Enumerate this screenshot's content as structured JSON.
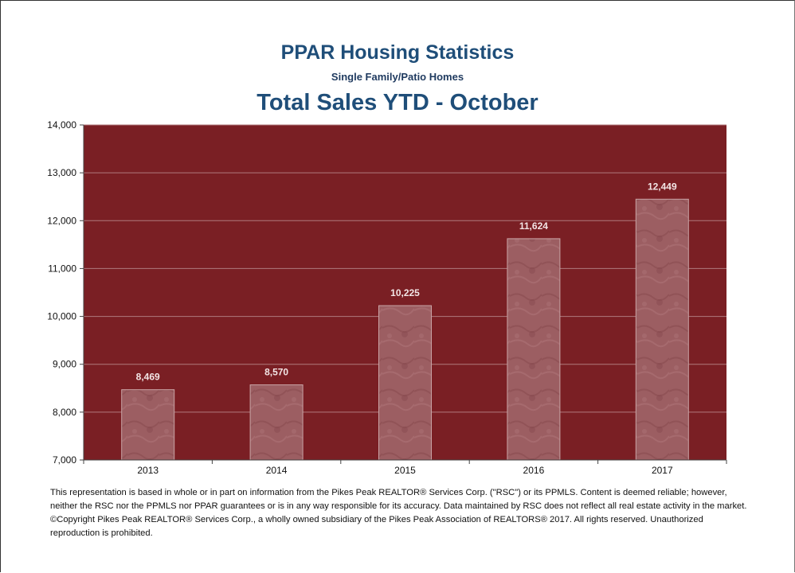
{
  "chart_data": {
    "type": "bar",
    "title": "PPAR Housing Statistics",
    "subtitle": "Single Family/Patio Homes",
    "chart_title": "Total Sales YTD - October",
    "categories": [
      "2013",
      "2014",
      "2015",
      "2016",
      "2017"
    ],
    "values": [
      8469,
      8570,
      10225,
      11624,
      12449
    ],
    "data_labels": [
      "8,469",
      "8,570",
      "10,225",
      "11,624",
      "12,449"
    ],
    "ylim": [
      7000,
      14000
    ],
    "yticks": [
      7000,
      8000,
      9000,
      10000,
      11000,
      12000,
      13000,
      14000
    ],
    "ytick_labels": [
      "7,000",
      "8,000",
      "9,000",
      "10,000",
      "11,000",
      "12,000",
      "13,000",
      "14,000"
    ],
    "grid": true,
    "legend": "none",
    "colors": {
      "plot_background": "#7a1f24",
      "bar_fill": "#9c5e62",
      "bar_edge": "#c9a4a6",
      "gridline": "#b07a7d",
      "data_label": "#f3e6e6",
      "title": "#1f4e79"
    }
  },
  "footer": {
    "disclaimer": "This representation is based in whole or in part on information from the Pikes Peak REALTOR® Services Corp. (\"RSC\") or its PPMLS. Content is deemed reliable; however, neither the RSC nor the PPMLS nor PPAR guarantees or is in any way responsible for its accuracy. Data maintained by RSC does not reflect all real estate activity in the market. ©Copyright Pikes Peak REALTOR® Services Corp., a wholly owned subsidiary of the Pikes Peak Association of REALTORS® 2017. All rights reserved. Unauthorized reproduction is prohibited."
  }
}
